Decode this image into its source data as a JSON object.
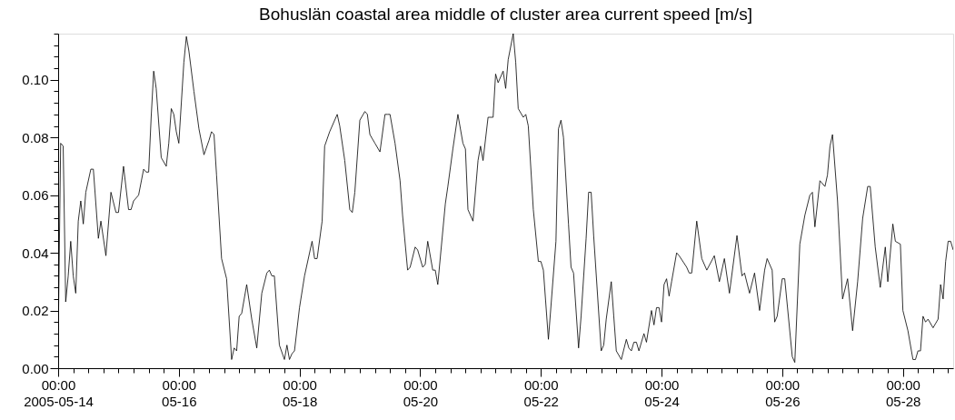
{
  "chart_data": {
    "type": "line",
    "title": "Bohuslän coastal area middle of cluster area current speed [m/s]",
    "xlim": [
      "2005-05-14T00:00",
      "2005-05-28T20:00"
    ],
    "xticks": [
      {
        "value": "2005-05-14T00:00",
        "label": "00:00\n2005-05-14"
      },
      {
        "value": "2005-05-14T06:00",
        "label": null
      },
      {
        "value": "2005-05-14T12:00",
        "label": null
      },
      {
        "value": "2005-05-14T18:00",
        "label": null
      },
      {
        "value": "2005-05-15T00:00",
        "label": null
      },
      {
        "value": "2005-05-15T06:00",
        "label": null
      },
      {
        "value": "2005-05-15T12:00",
        "label": null
      },
      {
        "value": "2005-05-15T18:00",
        "label": null
      },
      {
        "value": "2005-05-16T00:00",
        "label": "00:00\n05-16"
      },
      {
        "value": "2005-05-16T06:00",
        "label": null
      },
      {
        "value": "2005-05-16T12:00",
        "label": null
      },
      {
        "value": "2005-05-16T18:00",
        "label": null
      },
      {
        "value": "2005-05-17T00:00",
        "label": null
      },
      {
        "value": "2005-05-17T06:00",
        "label": null
      },
      {
        "value": "2005-05-17T12:00",
        "label": null
      },
      {
        "value": "2005-05-17T18:00",
        "label": null
      },
      {
        "value": "2005-05-18T00:00",
        "label": "00:00\n05-18"
      },
      {
        "value": "2005-05-18T06:00",
        "label": null
      },
      {
        "value": "2005-05-18T12:00",
        "label": null
      },
      {
        "value": "2005-05-18T18:00",
        "label": null
      },
      {
        "value": "2005-05-19T00:00",
        "label": null
      },
      {
        "value": "2005-05-19T06:00",
        "label": null
      },
      {
        "value": "2005-05-19T12:00",
        "label": null
      },
      {
        "value": "2005-05-19T18:00",
        "label": null
      },
      {
        "value": "2005-05-20T00:00",
        "label": "00:00\n05-20"
      },
      {
        "value": "2005-05-20T06:00",
        "label": null
      },
      {
        "value": "2005-05-20T12:00",
        "label": null
      },
      {
        "value": "2005-05-20T18:00",
        "label": null
      },
      {
        "value": "2005-05-21T00:00",
        "label": null
      },
      {
        "value": "2005-05-21T06:00",
        "label": null
      },
      {
        "value": "2005-05-21T12:00",
        "label": null
      },
      {
        "value": "2005-05-21T18:00",
        "label": null
      },
      {
        "value": "2005-05-22T00:00",
        "label": "00:00\n05-22"
      },
      {
        "value": "2005-05-22T06:00",
        "label": null
      },
      {
        "value": "2005-05-22T12:00",
        "label": null
      },
      {
        "value": "2005-05-22T18:00",
        "label": null
      },
      {
        "value": "2005-05-23T00:00",
        "label": null
      },
      {
        "value": "2005-05-23T06:00",
        "label": null
      },
      {
        "value": "2005-05-23T12:00",
        "label": null
      },
      {
        "value": "2005-05-23T18:00",
        "label": null
      },
      {
        "value": "2005-05-24T00:00",
        "label": "00:00\n05-24"
      },
      {
        "value": "2005-05-24T06:00",
        "label": null
      },
      {
        "value": "2005-05-24T12:00",
        "label": null
      },
      {
        "value": "2005-05-24T18:00",
        "label": null
      },
      {
        "value": "2005-05-25T00:00",
        "label": null
      },
      {
        "value": "2005-05-25T06:00",
        "label": null
      },
      {
        "value": "2005-05-25T12:00",
        "label": null
      },
      {
        "value": "2005-05-25T18:00",
        "label": null
      },
      {
        "value": "2005-05-26T00:00",
        "label": "00:00\n05-26"
      },
      {
        "value": "2005-05-26T06:00",
        "label": null
      },
      {
        "value": "2005-05-26T12:00",
        "label": null
      },
      {
        "value": "2005-05-26T18:00",
        "label": null
      },
      {
        "value": "2005-05-27T00:00",
        "label": null
      },
      {
        "value": "2005-05-27T06:00",
        "label": null
      },
      {
        "value": "2005-05-27T12:00",
        "label": null
      },
      {
        "value": "2005-05-27T18:00",
        "label": null
      },
      {
        "value": "2005-05-28T00:00",
        "label": "00:00\n05-28"
      },
      {
        "value": "2005-05-28T06:00",
        "label": null
      },
      {
        "value": "2005-05-28T12:00",
        "label": null
      },
      {
        "value": "2005-05-28T18:00",
        "label": null
      }
    ],
    "ylim": [
      0,
      0.116
    ],
    "yticks": [
      {
        "value": 0,
        "label": "0.00"
      },
      {
        "value": 0.004,
        "label": null
      },
      {
        "value": 0.008,
        "label": null
      },
      {
        "value": 0.012,
        "label": null
      },
      {
        "value": 0.016,
        "label": null
      },
      {
        "value": 0.02,
        "label": "0.02"
      },
      {
        "value": 0.024,
        "label": null
      },
      {
        "value": 0.028,
        "label": null
      },
      {
        "value": 0.032,
        "label": null
      },
      {
        "value": 0.036,
        "label": null
      },
      {
        "value": 0.04,
        "label": "0.04"
      },
      {
        "value": 0.044,
        "label": null
      },
      {
        "value": 0.048,
        "label": null
      },
      {
        "value": 0.052,
        "label": null
      },
      {
        "value": 0.056,
        "label": null
      },
      {
        "value": 0.06,
        "label": "0.06"
      },
      {
        "value": 0.064,
        "label": null
      },
      {
        "value": 0.068,
        "label": null
      },
      {
        "value": 0.072,
        "label": null
      },
      {
        "value": 0.076,
        "label": null
      },
      {
        "value": 0.08,
        "label": "0.08"
      },
      {
        "value": 0.084,
        "label": null
      },
      {
        "value": 0.088,
        "label": null
      },
      {
        "value": 0.092,
        "label": null
      },
      {
        "value": 0.096,
        "label": null
      },
      {
        "value": 0.1,
        "label": "0.10"
      },
      {
        "value": 0.104,
        "label": null
      },
      {
        "value": 0.108,
        "label": null
      },
      {
        "value": 0.112,
        "label": null
      },
      {
        "value": 0.116,
        "label": null
      }
    ],
    "grid": false,
    "marker": "none",
    "line_style": "solid",
    "series": [
      {
        "color": "#000000",
        "x": [
          "2005-05-14T00:00",
          "2005-05-14T01:00",
          "2005-05-14T02:00",
          "2005-05-14T03:00",
          "2005-05-14T04:00",
          "2005-05-14T05:00",
          "2005-05-14T06:00",
          "2005-05-14T07:00",
          "2005-05-14T08:00",
          "2005-05-14T09:00",
          "2005-05-14T10:00",
          "2005-05-14T11:00",
          "2005-05-14T13:00",
          "2005-05-14T14:00",
          "2005-05-14T16:00",
          "2005-05-14T17:00",
          "2005-05-14T19:00",
          "2005-05-14T21:00",
          "2005-05-14T23:00",
          "2005-05-15T00:00",
          "2005-05-15T02:00",
          "2005-05-15T04:00",
          "2005-05-15T05:00",
          "2005-05-15T06:00",
          "2005-05-15T08:00",
          "2005-05-15T10:00",
          "2005-05-15T11:00",
          "2005-05-15T12:00",
          "2005-05-15T13:00",
          "2005-05-15T14:00",
          "2005-05-15T15:00",
          "2005-05-15T17:00",
          "2005-05-15T19:00",
          "2005-05-15T20:00",
          "2005-05-15T21:00",
          "2005-05-15T22:00",
          "2005-05-15T23:00",
          "2005-05-16T00:00",
          "2005-05-16T02:00",
          "2005-05-16T03:00",
          "2005-05-16T04:00",
          "2005-05-16T06:00",
          "2005-05-16T08:00",
          "2005-05-16T10:00",
          "2005-05-16T12:00",
          "2005-05-16T13:00",
          "2005-05-16T14:00",
          "2005-05-16T15:00",
          "2005-05-16T17:00",
          "2005-05-16T19:00",
          "2005-05-16T21:00",
          "2005-05-16T22:00",
          "2005-05-16T23:00",
          "2005-05-17T00:00",
          "2005-05-17T01:00",
          "2005-05-17T03:00",
          "2005-05-17T05:00",
          "2005-05-17T07:00",
          "2005-05-17T09:00",
          "2005-05-17T11:00",
          "2005-05-17T12:00",
          "2005-05-17T13:00",
          "2005-05-17T14:00",
          "2005-05-17T16:00",
          "2005-05-17T18:00",
          "2005-05-17T19:00",
          "2005-05-17T20:00",
          "2005-05-17T21:00",
          "2005-05-17T22:00",
          "2005-05-18T00:00",
          "2005-05-18T02:00",
          "2005-05-18T05:00",
          "2005-05-18T06:00",
          "2005-05-18T07:00",
          "2005-05-18T09:00",
          "2005-05-18T10:00",
          "2005-05-18T12:00",
          "2005-05-18T15:00",
          "2005-05-18T16:00",
          "2005-05-18T18:00",
          "2005-05-18T20:00",
          "2005-05-18T21:00",
          "2005-05-18T22:00",
          "2005-05-19T00:00",
          "2005-05-19T02:00",
          "2005-05-19T03:00",
          "2005-05-19T04:00",
          "2005-05-19T06:00",
          "2005-05-19T08:00",
          "2005-05-19T10:00",
          "2005-05-19T11:00",
          "2005-05-19T12:00",
          "2005-05-19T14:00",
          "2005-05-19T16:00",
          "2005-05-19T17:00",
          "2005-05-19T19:00",
          "2005-05-19T20:00",
          "2005-05-19T22:00",
          "2005-05-19T23:00",
          "2005-05-20T01:00",
          "2005-05-20T02:00",
          "2005-05-20T03:00",
          "2005-05-20T05:00",
          "2005-05-20T06:00",
          "2005-05-20T07:00",
          "2005-05-20T10:00",
          "2005-05-20T11:00",
          "2005-05-20T13:00",
          "2005-05-20T15:00",
          "2005-05-20T17:00",
          "2005-05-20T18:00",
          "2005-05-20T19:00",
          "2005-05-20T21:00",
          "2005-05-20T23:00",
          "2005-05-21T00:00",
          "2005-05-21T01:00",
          "2005-05-21T03:00",
          "2005-05-21T05:00",
          "2005-05-21T06:00",
          "2005-05-21T07:00",
          "2005-05-21T09:00",
          "2005-05-21T10:00",
          "2005-05-21T11:00",
          "2005-05-21T13:00",
          "2005-05-21T14:00",
          "2005-05-21T15:00",
          "2005-05-21T17:00",
          "2005-05-21T18:00",
          "2005-05-21T19:00",
          "2005-05-21T21:00",
          "2005-05-21T23:00",
          "2005-05-22T00:00",
          "2005-05-22T01:00",
          "2005-05-22T03:00",
          "2005-05-22T06:00",
          "2005-05-22T07:00",
          "2005-05-22T08:00",
          "2005-05-22T09:00",
          "2005-05-22T11:00",
          "2005-05-22T12:00",
          "2005-05-22T13:00",
          "2005-05-22T15:00",
          "2005-05-22T16:00",
          "2005-05-22T18:00",
          "2005-05-22T19:00",
          "2005-05-22T20:00",
          "2005-05-22T21:00",
          "2005-05-23T00:00",
          "2005-05-23T01:00",
          "2005-05-23T02:00",
          "2005-05-23T04:00",
          "2005-05-23T05:00",
          "2005-05-23T06:00",
          "2005-05-23T08:00",
          "2005-05-23T10:00",
          "2005-05-23T11:00",
          "2005-05-23T12:00",
          "2005-05-23T13:00",
          "2005-05-23T14:00",
          "2005-05-23T15:00",
          "2005-05-23T17:00",
          "2005-05-23T18:00",
          "2005-05-23T20:00",
          "2005-05-23T21:00",
          "2005-05-23T22:00",
          "2005-05-23T23:00",
          "2005-05-24T00:00",
          "2005-05-24T01:00",
          "2005-05-24T02:00",
          "2005-05-24T03:00",
          "2005-05-24T04:00",
          "2005-05-24T06:00",
          "2005-05-24T07:00",
          "2005-05-24T10:00",
          "2005-05-24T11:00",
          "2005-05-24T12:00",
          "2005-05-24T14:00",
          "2005-05-24T16:00",
          "2005-05-24T18:00",
          "2005-05-24T21:00",
          "2005-05-24T23:00",
          "2005-05-25T01:00",
          "2005-05-25T03:00",
          "2005-05-25T06:00",
          "2005-05-25T08:00",
          "2005-05-25T09:00",
          "2005-05-25T11:00",
          "2005-05-25T13:00",
          "2005-05-25T15:00",
          "2005-05-25T17:00",
          "2005-05-25T18:00",
          "2005-05-25T20:00",
          "2005-05-25T21:00",
          "2005-05-25T22:00",
          "2005-05-26T00:00",
          "2005-05-26T01:00",
          "2005-05-26T04:00",
          "2005-05-26T05:00",
          "2005-05-26T07:00",
          "2005-05-26T09:00",
          "2005-05-26T11:00",
          "2005-05-26T12:00",
          "2005-05-26T13:00",
          "2005-05-26T15:00",
          "2005-05-26T17:00",
          "2005-05-26T18:00",
          "2005-05-26T19:00",
          "2005-05-26T20:00",
          "2005-05-26T22:00",
          "2005-05-27T00:00",
          "2005-05-27T02:00",
          "2005-05-27T04:00",
          "2005-05-27T06:00",
          "2005-05-27T08:00",
          "2005-05-27T10:00",
          "2005-05-27T11:00",
          "2005-05-27T13:00",
          "2005-05-27T15:00",
          "2005-05-27T17:00",
          "2005-05-27T18:00",
          "2005-05-27T20:00",
          "2005-05-27T21:00",
          "2005-05-27T23:00",
          "2005-05-28T00:00",
          "2005-05-28T02:00",
          "2005-05-28T04:00",
          "2005-05-28T05:00",
          "2005-05-28T06:00",
          "2005-05-28T07:00",
          "2005-05-28T08:00",
          "2005-05-28T09:00",
          "2005-05-28T10:00",
          "2005-05-28T12:00",
          "2005-05-28T14:00",
          "2005-05-28T15:00",
          "2005-05-28T16:00",
          "2005-05-28T17:00",
          "2005-05-28T18:00",
          "2005-05-28T19:00",
          "2005-05-28T20:00"
        ],
        "values": [
          0.008,
          0.078,
          0.077,
          0.023,
          0.032,
          0.044,
          0.032,
          0.026,
          0.051,
          0.058,
          0.05,
          0.061,
          0.069,
          0.069,
          0.045,
          0.051,
          0.039,
          0.061,
          0.054,
          0.054,
          0.07,
          0.055,
          0.055,
          0.058,
          0.06,
          0.069,
          0.068,
          0.068,
          0.087,
          0.103,
          0.097,
          0.073,
          0.07,
          0.078,
          0.09,
          0.088,
          0.082,
          0.078,
          0.106,
          0.115,
          0.11,
          0.096,
          0.083,
          0.074,
          0.079,
          0.082,
          0.081,
          0.067,
          0.038,
          0.031,
          0.003,
          0.007,
          0.006,
          0.018,
          0.019,
          0.029,
          0.017,
          0.007,
          0.026,
          0.033,
          0.034,
          0.032,
          0.032,
          0.008,
          0.003,
          0.008,
          0.003,
          0.005,
          0.006,
          0.021,
          0.032,
          0.044,
          0.038,
          0.038,
          0.051,
          0.077,
          0.082,
          0.088,
          0.084,
          0.072,
          0.055,
          0.054,
          0.061,
          0.086,
          0.089,
          0.088,
          0.081,
          0.078,
          0.075,
          0.088,
          0.088,
          0.088,
          0.078,
          0.065,
          0.053,
          0.034,
          0.035,
          0.042,
          0.041,
          0.035,
          0.036,
          0.044,
          0.034,
          0.034,
          0.029,
          0.057,
          0.063,
          0.076,
          0.088,
          0.078,
          0.076,
          0.055,
          0.051,
          0.072,
          0.077,
          0.072,
          0.087,
          0.087,
          0.102,
          0.099,
          0.103,
          0.097,
          0.107,
          0.116,
          0.106,
          0.09,
          0.087,
          0.088,
          0.084,
          0.055,
          0.037,
          0.037,
          0.034,
          0.01,
          0.044,
          0.083,
          0.086,
          0.08,
          0.05,
          0.035,
          0.033,
          0.007,
          0.018,
          0.045,
          0.061,
          0.061,
          0.046,
          0.006,
          0.008,
          0.017,
          0.03,
          0.018,
          0.006,
          0.003,
          0.01,
          0.007,
          0.006,
          0.009,
          0.009,
          0.006,
          0.012,
          0.009,
          0.02,
          0.015,
          0.021,
          0.021,
          0.016,
          0.029,
          0.031,
          0.025,
          0.03,
          0.04,
          0.039,
          0.035,
          0.033,
          0.033,
          0.051,
          0.038,
          0.034,
          0.039,
          0.03,
          0.038,
          0.026,
          0.046,
          0.032,
          0.033,
          0.026,
          0.033,
          0.02,
          0.034,
          0.038,
          0.034,
          0.016,
          0.018,
          0.031,
          0.031,
          0.004,
          0.002,
          0.043,
          0.053,
          0.06,
          0.061,
          0.049,
          0.065,
          0.063,
          0.067,
          0.077,
          0.081,
          0.058,
          0.024,
          0.031,
          0.013,
          0.03,
          0.052,
          0.063,
          0.063,
          0.042,
          0.028,
          0.042,
          0.03,
          0.05,
          0.044,
          0.043,
          0.02,
          0.013,
          0.003,
          0.003,
          0.006,
          0.006,
          0.018,
          0.016,
          0.017,
          0.014,
          0.017,
          0.029,
          0.024,
          0.037,
          0.044,
          0.044,
          0.041
        ]
      }
    ]
  }
}
